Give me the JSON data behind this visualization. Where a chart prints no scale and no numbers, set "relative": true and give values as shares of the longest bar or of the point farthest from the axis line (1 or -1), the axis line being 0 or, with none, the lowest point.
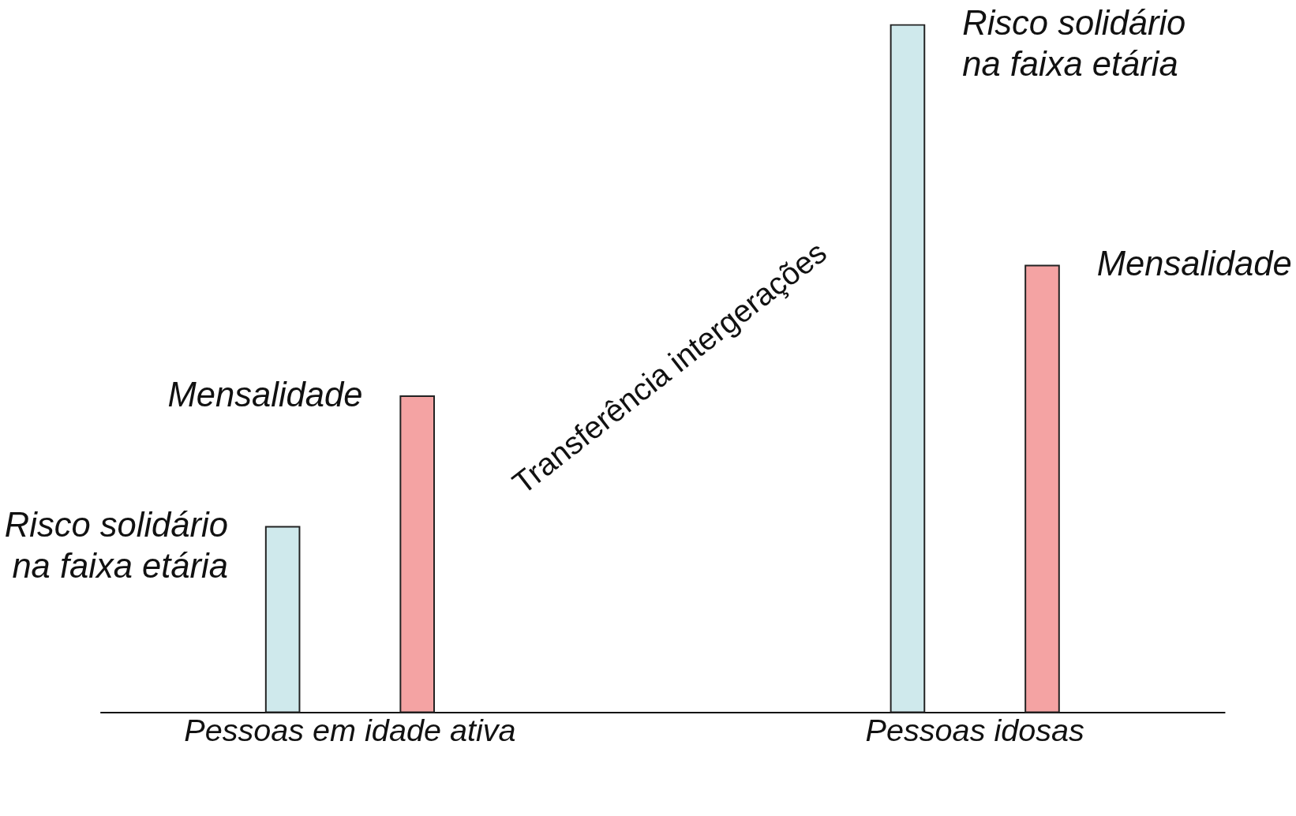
{
  "chart_data": {
    "type": "bar",
    "relative": true,
    "categories": [
      "Pessoas em idade ativa",
      "Pessoas idosas"
    ],
    "series": [
      {
        "name": "Risco solidário na faixa etária",
        "color": "#cfe9ec",
        "values": [
          0.27,
          1
        ]
      },
      {
        "name": "Mensalidade",
        "color": "#f4a3a3",
        "values": [
          0.46,
          0.65
        ]
      }
    ],
    "annotations": [
      "Transferência intergerações"
    ],
    "legend": false
  }
}
